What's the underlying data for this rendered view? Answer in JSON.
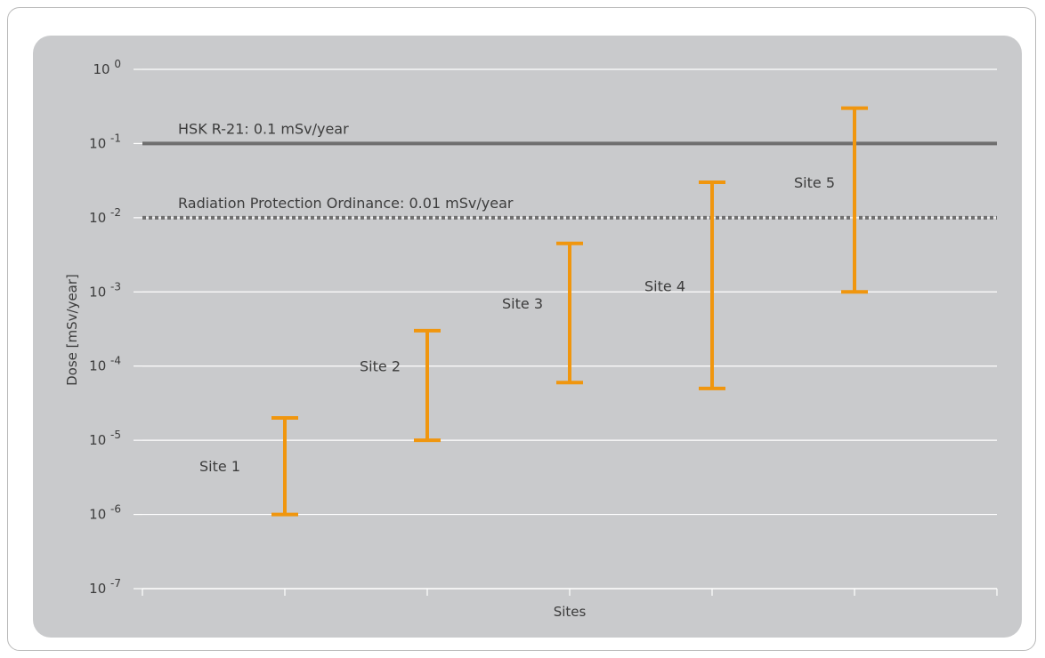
{
  "chart_data": {
    "type": "range",
    "xlabel": "Sites",
    "ylabel": "Dose [mSv/year]",
    "yscale": "log",
    "ylim": [
      1e-07,
      1
    ],
    "y_ticks": [
      {
        "exp": "0",
        "value": 1
      },
      {
        "exp": "-1",
        "value": 0.1
      },
      {
        "exp": "-2",
        "value": 0.01
      },
      {
        "exp": "-3",
        "value": 0.001
      },
      {
        "exp": "-4",
        "value": 0.0001
      },
      {
        "exp": "-5",
        "value": 1e-05
      },
      {
        "exp": "-6",
        "value": 1e-06
      },
      {
        "exp": "-7",
        "value": 1e-07
      }
    ],
    "tick_base": "10",
    "grid": true,
    "categories": [
      "Site 1",
      "Site 2",
      "Site 3",
      "Site 4",
      "Site 5"
    ],
    "ranges": [
      {
        "label": "Site 1",
        "low": 1e-06,
        "high": 2e-05
      },
      {
        "label": "Site 2",
        "low": 1e-05,
        "high": 0.0003
      },
      {
        "label": "Site 3",
        "low": 6e-05,
        "high": 0.0045
      },
      {
        "label": "Site 4",
        "low": 5e-05,
        "high": 0.03
      },
      {
        "label": "Site 5",
        "low": 0.001,
        "high": 0.3
      }
    ],
    "reference_lines": [
      {
        "label": "HSK R-21: 0.1 mSv/year",
        "value": 0.1,
        "style": "solid"
      },
      {
        "label": "Radiation Protection Ordinance: 0.01 mSv/year",
        "value": 0.01,
        "style": "dotted"
      }
    ],
    "colors": {
      "range": "#f0960e",
      "reference": "#6f6f6f",
      "panel": "#c9cacc",
      "grid": "#ffffff",
      "text": "#3c3c3c"
    }
  }
}
